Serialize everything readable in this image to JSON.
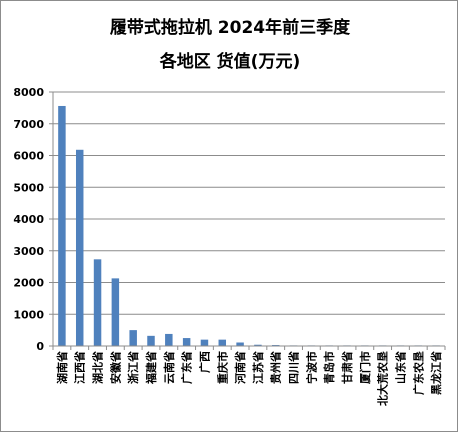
{
  "chart_data": {
    "type": "bar",
    "title": [
      "履带式拖拉机  2024年前三季度",
      "各地区 货值(万元)"
    ],
    "xlabel": "",
    "ylabel": "",
    "ylim": [
      0,
      8000
    ],
    "ytick_step": 1000,
    "grid": true,
    "legend": "none",
    "bar_color": "#4f81bd",
    "categories": [
      "湖南省",
      "江西省",
      "湖北省",
      "安徽省",
      "浙江省",
      "福建省",
      "云南省",
      "广东省",
      "广西",
      "重庆市",
      "河南省",
      "江苏省",
      "贵州省",
      "四川省",
      "宁波市",
      "青岛市",
      "甘肃省",
      "厦门市",
      "北大荒农垦",
      "山东省",
      "广东农垦",
      "黑龙江省"
    ],
    "values": [
      7560,
      6180,
      2730,
      2130,
      500,
      320,
      380,
      250,
      200,
      200,
      110,
      40,
      30,
      15,
      12,
      10,
      10,
      8,
      6,
      5,
      4,
      3
    ]
  }
}
